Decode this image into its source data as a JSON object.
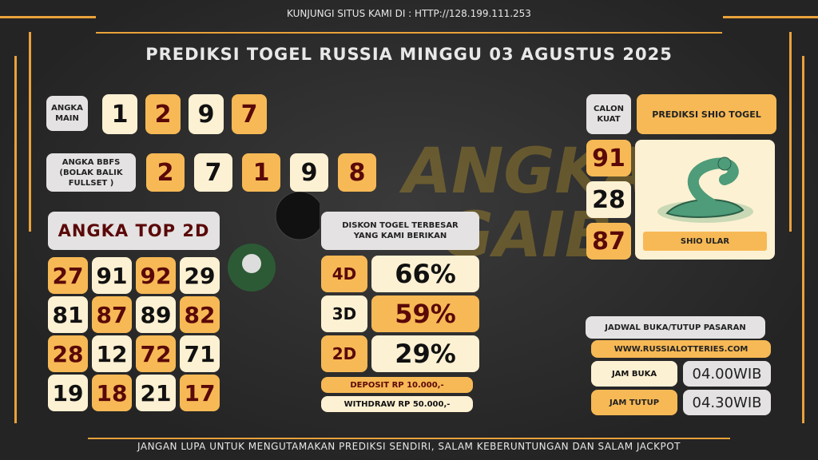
{
  "header": {
    "visit": "KUNJUNGI SITUS KAMI DI : HTTP://128.199.111.253",
    "title": "PREDIKSI TOGEL RUSSIA MINGGU 03 AGUSTUS 2025"
  },
  "logo": "ANGKA GAIB",
  "angka_main": {
    "label": "ANGKA MAIN",
    "digits": [
      "1",
      "2",
      "9",
      "7"
    ]
  },
  "bbfs": {
    "label": "ANGKA BBFS (BOLAK BALIK FULLSET )",
    "digits": [
      "2",
      "7",
      "1",
      "9",
      "8"
    ]
  },
  "top2d": {
    "label": "ANGKA TOP 2D",
    "numbers": [
      "27",
      "91",
      "92",
      "29",
      "81",
      "87",
      "89",
      "82",
      "28",
      "12",
      "72",
      "71",
      "19",
      "18",
      "21",
      "17"
    ]
  },
  "diskon": {
    "label": "DISKON TOGEL TERBESAR YANG KAMI BERIKAN",
    "rows": [
      {
        "game": "4D",
        "value": "66%"
      },
      {
        "game": "3D",
        "value": "59%"
      },
      {
        "game": "2D",
        "value": "29%"
      }
    ],
    "deposit": "DEPOSIT RP 10.000,-",
    "withdraw": "WITHDRAW RP 50.000,-"
  },
  "shio": {
    "calon_label": "CALON KUAT",
    "title": "PREDIKSI SHIO TOGEL",
    "numbers": [
      "91",
      "28",
      "87"
    ],
    "name": "SHIO ULAR"
  },
  "jadwal": {
    "title": "JADWAL BUKA/TUTUP PASARAN",
    "site": "WWW.RUSSIALOTTERIES.COM",
    "buka_label": "JAM BUKA",
    "buka": "04.00WIB",
    "tutup_label": "JAM TUTUP",
    "tutup": "04.30WIB"
  },
  "footer": "JANGAN LUPA UNTUK MENGUTAMAKAN PREDIKSI SENDIRI, SALAM KEBERUNTUNGAN DAN SALAM JACKPOT"
}
